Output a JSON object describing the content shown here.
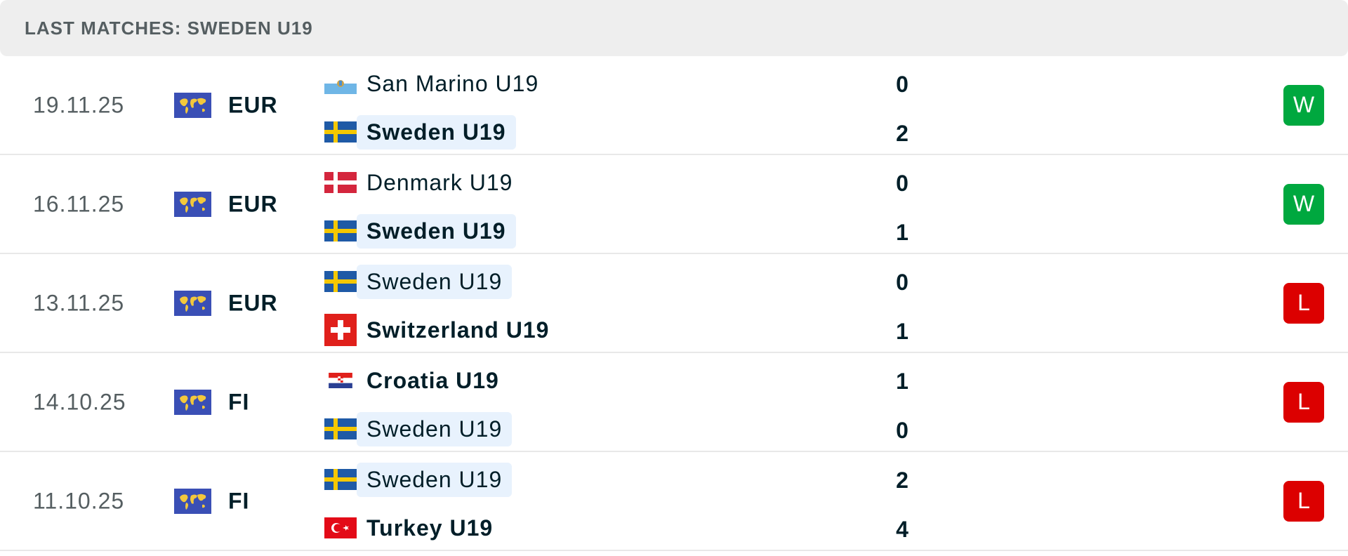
{
  "header": {
    "title": "LAST MATCHES: SWEDEN U19"
  },
  "colors": {
    "win": "#00a83f",
    "loss": "#dc0000",
    "highlight": "#e8f2fd",
    "header_bg": "#eeeeee"
  },
  "matches": [
    {
      "date": "19.11.25",
      "competition": "EUR",
      "competition_icon": "world-map-icon",
      "home": {
        "name": "San Marino U19",
        "flag": "san-marino-flag-icon",
        "score": "0",
        "winner": false,
        "highlight": false
      },
      "away": {
        "name": "Sweden U19",
        "flag": "sweden-flag-icon",
        "score": "2",
        "winner": true,
        "highlight": true
      },
      "result": "W"
    },
    {
      "date": "16.11.25",
      "competition": "EUR",
      "competition_icon": "world-map-icon",
      "home": {
        "name": "Denmark U19",
        "flag": "denmark-flag-icon",
        "score": "0",
        "winner": false,
        "highlight": false
      },
      "away": {
        "name": "Sweden U19",
        "flag": "sweden-flag-icon",
        "score": "1",
        "winner": true,
        "highlight": true
      },
      "result": "W"
    },
    {
      "date": "13.11.25",
      "competition": "EUR",
      "competition_icon": "world-map-icon",
      "home": {
        "name": "Sweden U19",
        "flag": "sweden-flag-icon",
        "score": "0",
        "winner": false,
        "highlight": true
      },
      "away": {
        "name": "Switzerland U19",
        "flag": "switzerland-flag-icon",
        "score": "1",
        "winner": true,
        "highlight": false
      },
      "result": "L"
    },
    {
      "date": "14.10.25",
      "competition": "FI",
      "competition_icon": "world-map-icon",
      "home": {
        "name": "Croatia U19",
        "flag": "croatia-flag-icon",
        "score": "1",
        "winner": true,
        "highlight": false
      },
      "away": {
        "name": "Sweden U19",
        "flag": "sweden-flag-icon",
        "score": "0",
        "winner": false,
        "highlight": true
      },
      "result": "L"
    },
    {
      "date": "11.10.25",
      "competition": "FI",
      "competition_icon": "world-map-icon",
      "home": {
        "name": "Sweden U19",
        "flag": "sweden-flag-icon",
        "score": "2",
        "winner": false,
        "highlight": true
      },
      "away": {
        "name": "Turkey U19",
        "flag": "turkey-flag-icon",
        "score": "4",
        "winner": true,
        "highlight": false
      },
      "result": "L"
    }
  ]
}
